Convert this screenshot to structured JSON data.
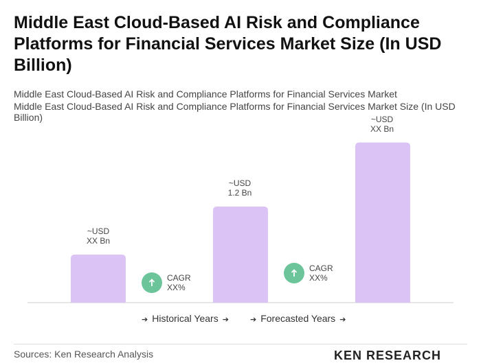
{
  "chart_data": {
    "type": "bar",
    "title": "Middle East Cloud-Based AI Risk and Compliance Platforms for Financial Services Market Size (In USD Billion)",
    "subtitle": "Middle East Cloud-Based AI Risk and Compliance Platforms for Financial Services Market",
    "axis_title": "Middle East Cloud-Based AI Risk and Compliance Platforms for Financial Services Market Size (In USD Billion)",
    "categories": [
      null,
      null,
      null
    ],
    "values": [
      0.6,
      1.2,
      2.0
    ],
    "value_labels": [
      [
        "~USD",
        "XX Bn"
      ],
      [
        "~USD",
        "1.2 Bn"
      ],
      [
        "~USD",
        "XX Bn"
      ]
    ],
    "color": "#dcc3f5",
    "ylim": [
      0,
      2.2
    ],
    "annotations": [
      {
        "label": "CAGR",
        "value": "XX%"
      },
      {
        "label": "CAGR",
        "value": "XX%"
      }
    ],
    "periods": [
      "Historical Years",
      "Forecasted Years"
    ],
    "source": "Sources: Ken Research Analysis",
    "logo": "KEN RESEARCH"
  }
}
